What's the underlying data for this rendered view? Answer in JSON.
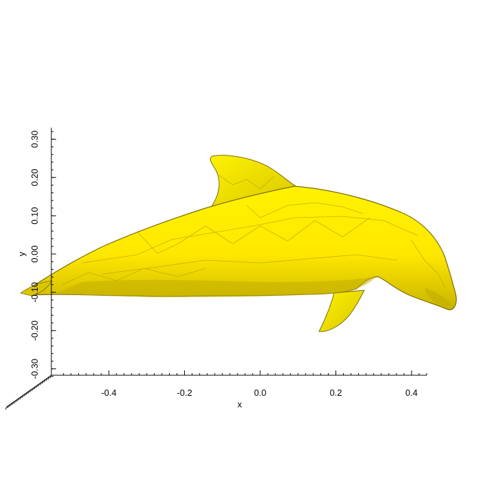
{
  "plot": {
    "x_axis": {
      "title": "x",
      "ticks": [
        -0.4,
        -0.2,
        0.0,
        0.2,
        0.4
      ],
      "tick_labels": [
        "-0.4",
        "-0.2",
        "0.0",
        "0.2",
        "0.4"
      ],
      "range": [
        -0.54,
        0.44
      ]
    },
    "y_axis": {
      "title": "y",
      "ticks": [
        -0.3,
        -0.2,
        -0.1,
        0.0,
        0.1,
        0.2,
        0.3
      ],
      "tick_labels": [
        "-0.30",
        "-0.20",
        "-0.10",
        "0.00",
        "0.10",
        "0.20",
        "0.30"
      ],
      "range": [
        -0.33,
        0.33
      ]
    },
    "surface_color": "#ffee00",
    "shade_color": "#8a7a00",
    "axis_color": "#000000"
  }
}
